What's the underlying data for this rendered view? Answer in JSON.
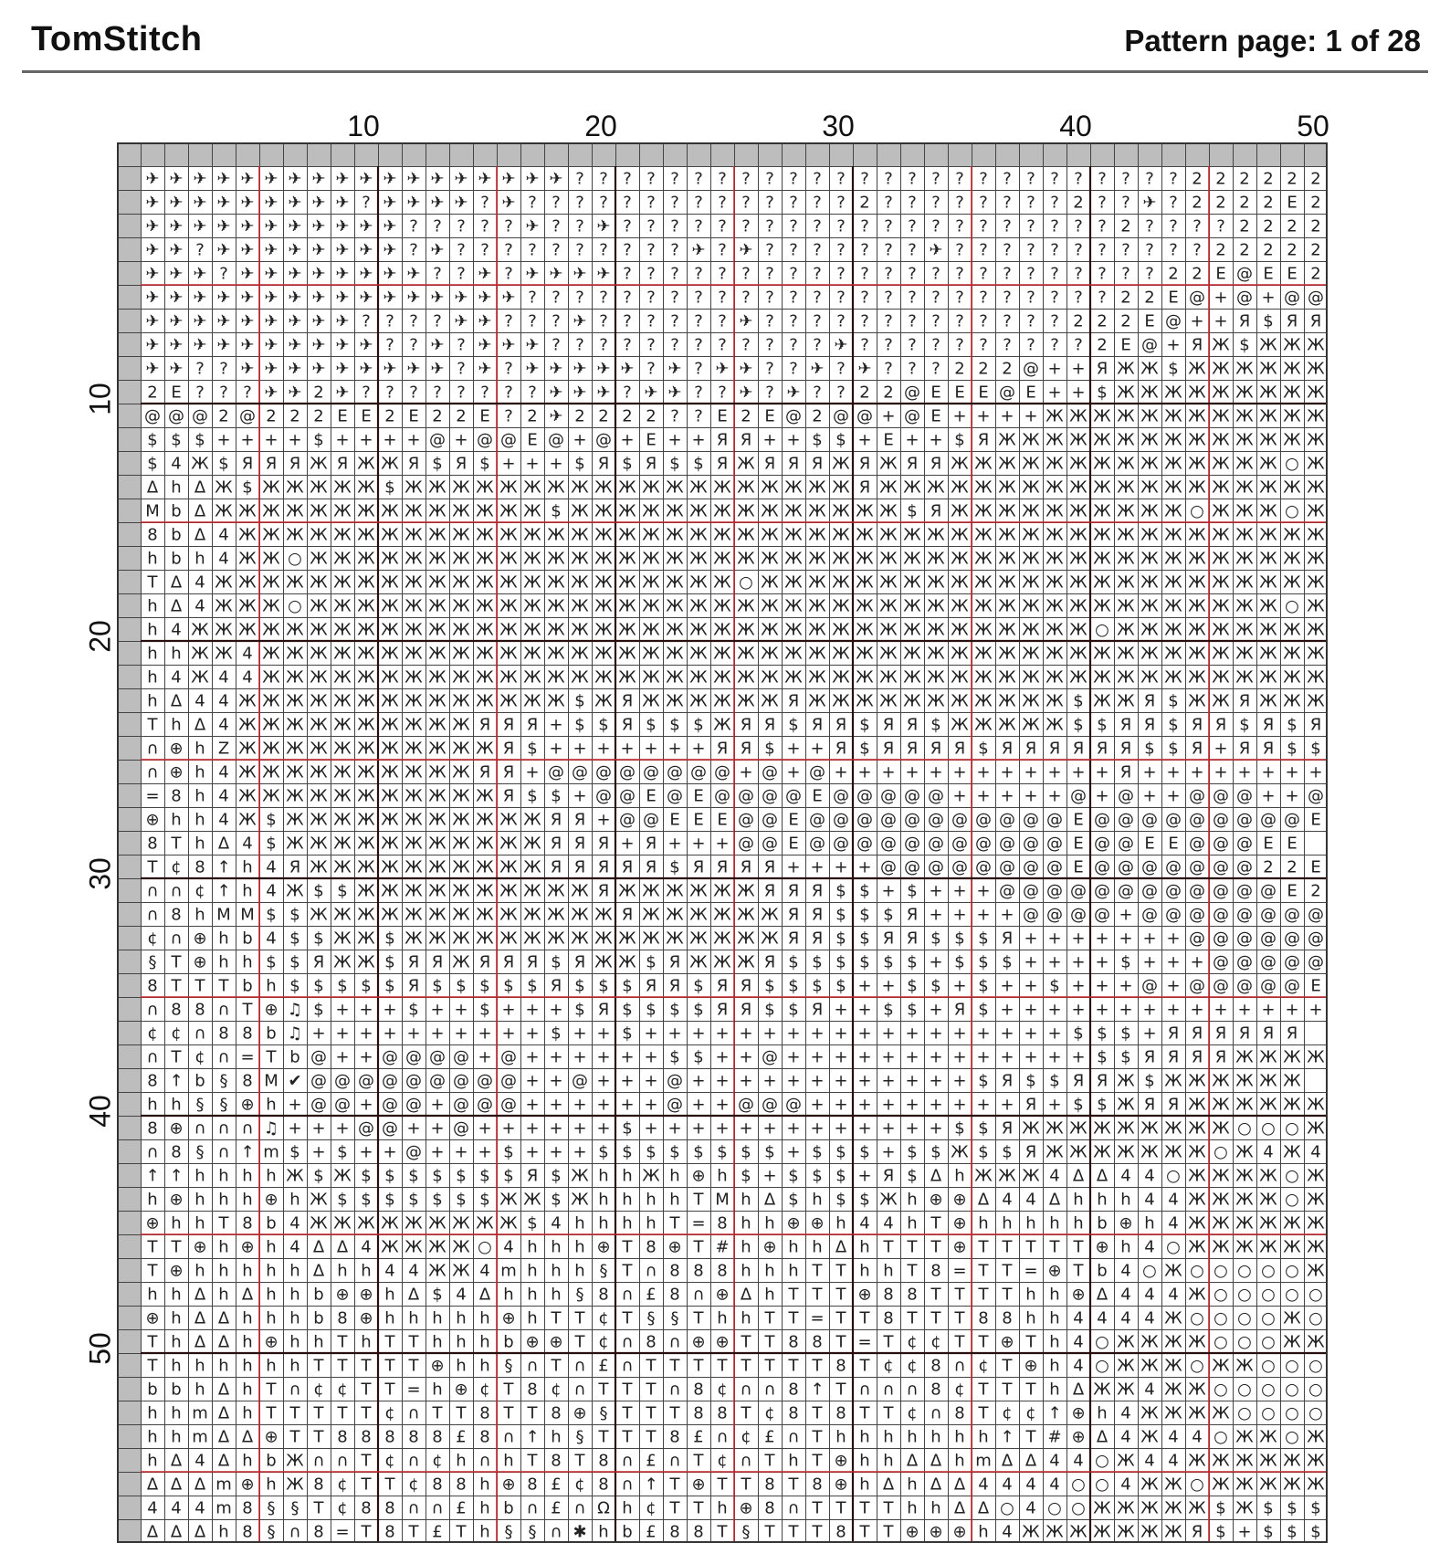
{
  "header": {
    "brand": "TomStitch",
    "page_label": "Pattern page: 1 of 28"
  },
  "axes": {
    "column_numbers": [
      "10",
      "20",
      "30",
      "40",
      "50"
    ],
    "row_numbers": [
      "10",
      "20",
      "30",
      "40",
      "50"
    ]
  },
  "grid": {
    "columns": 50,
    "rows": 58,
    "grid_line_color": "#444444",
    "major_line_color": "#2a0f0f",
    "minor_line_color": "#c1272d",
    "margin_color": "#bdbdbd"
  },
  "pattern_rows": [
    "✈✈✈✈✈✈✈✈✈✈✈✈✈✈✈✈✈✈??????????????????????????2222222222EE",
    "✈✈✈✈✈✈✈✈✈?✈✈✈✈?✈??????????????2????????2??✈?2222E22E22",
    "✈✈✈✈✈✈✈✈✈✈✈?????✈??✈?????????????????????2????2222EE222E",
    "✈✈?✈✈✈✈✈✈✈✈?✈??????????✈?✈???????✈???????????2222222EEE22",
    "✈✈✈?✈✈✈✈✈✈✈✈??✈?✈✈✈✈???????????????????????22E@EE2EEEE2E",
    "✈✈✈✈✈✈✈✈✈✈✈✈✈✈✈✈?????????????????????????22E@+@+@@@@E@E",
    "✈✈✈✈✈✈✈✈✈????✈✈???✈??????✈?????????????222E@++Я$ЯЯ$$++",
    "✈✈✈✈✈✈✈✈✈✈??✈?✈✈✈????????????✈??????????2E@+ЯЖ$ЖЖЖЖЖЖЖЖ",
    "✈✈??✈✈✈✈✈✈✈✈✈?✈?✈✈✈✈✈?✈?✈✈??✈?✈???222@++ЯЖЖ$ЖЖЖЖЖЖЖЖ",
    "2E???✈✈2✈????????✈✈✈?✈✈??✈?✈??22@EEE@E++$ЖЖЖЖЖЖЖЖЖЖ$$",
    "@@@2@222EE2E22E?2✈2222??E2E@2@@+@E++++ЖЖЖЖЖЖЖЖЖЖЖЖ$$",
    "$$$++++$++++@+@@E@+@+E++ЯЯ++$$+E++$ЯЖЖЖЖЖЖЖЖЖЖЖЖЖЖ$$",
    "$4Ж$ЯЯЯЖЯЖЖЯ$Я$+++$Я$Я$$ЯЖЯЯЯЖЯЖЯЯЖЖЖЖЖЖЖЖЖЖЖЖЖЖ○ЖЖ",
    "ΔhΔЖ$ЖЖЖЖЖ$ЖЖЖЖЖЖЖЖЖЖЖЖЖЖЖЖЖЖЖЯЖЖЖЖЖЖЖЖЖЖЖЖЖЖЖЖЖЖЖ",
    "MbΔЖЖЖЖЖЖЖЖЖЖЖЖЖЖ$ЖЖЖЖЖЖЖЖЖЖЖЖЖЖ$ЯЖЖЖЖЖЖЖЖЖЖ○ЖЖЖ○ЖЖ○Ж",
    "8bΔ4ЖЖЖЖЖЖЖЖЖЖЖЖЖЖЖЖЖЖЖЖЖЖЖЖЖЖЖЖЖЖЖЖЖЖЖЖЖЖЖЖЖЖЖЖЖЖЖЖ",
    "hbh4ЖЖ○ЖЖЖЖЖЖЖЖЖЖЖЖЖЖЖЖЖЖЖЖЖЖЖЖЖЖЖЖЖЖЖЖЖЖЖЖЖЖЖЖЖЖЖЖ",
    "TΔ4ЖЖЖЖЖЖЖЖЖЖЖЖЖЖЖЖЖЖЖЖЖЖ○ЖЖЖЖЖЖЖЖЖЖЖЖЖЖЖЖЖЖЖЖЖЖЖЖЖ",
    "hΔ4ЖЖЖ○ЖЖЖЖЖЖЖЖЖЖЖЖЖЖЖЖЖЖЖЖЖЖЖЖЖЖЖЖЖЖЖЖЖЖЖЖЖЖЖЖЖ○ЖЖ",
    "h4ЖЖЖЖЖЖЖЖЖЖЖЖЖЖЖЖЖЖЖЖЖЖЖЖЖЖЖЖЖЖЖЖЖЖЖЖЖЖ○ЖЖЖЖЖЖЖЖЖЖ",
    "hhЖЖ4ЖЖЖЖЖЖЖЖЖЖЖЖЖЖЖЖЖЖЖЖЖЖЖЖЖЖЖЖЖЖЖЖЖЖЖЖЖЖЖЖЖЖЖЖЖЖ",
    "h4Ж44ЖЖЖЖЖЖЖЖЖЖЖЖЖЖЖЖЖЖЖЖЖЖЖЖЖЖЖЖЖЖЖЖЖЖЖЖЖЖЖЖЖЖЖЖЖЖ",
    "hΔ44ЖЖЖЖЖЖЖЖЖЖЖЖЖЖ$ЖЯЖЖЖЖЖЖЯЖЖЖЖЖЖЖЖЖЖЖ$ЖЖЯ$ЖЖЯЖЖЖЖ",
    "ThΔ4ЖЖЖЖЖЖЖЖЖЖЯЯЯ+$$Я$$$ЖЯЯ$ЯЯ$ЯЯ$ЖЖЖЖЖ$$ЯЯ$ЯЯ$Я$ЯЯ",
    "∩⊕hZЖЖЖЖЖЖЖЖЖЖЖЯ$+++++++ЯЯ$++Я$ЯЯЯЯ$ЯЯЯЯЯЯ$$Я+ЯЯ$$+$",
    "∩⊕h4ЖЖЖЖЖЖЖЖЖЖЯЯ+@@@@@@@@+@+@++++++++++++Я++++++++",
    "=8h4ЖЖЖЖЖЖЖЖЖЖЖЯ$$+@@E@E@@@@E@@@@@+++++@+@++@@@++@",
    "⊕hh4Ж$ЖЖЖЖЖЖЖЖЖЖЖЯЯ+@@EEE@@E@@@@@@@@@@@E@@@@@@@@@E",
    "8ThΔ4$ЖЖЖЖЖЖЖЖЖЖЖЯЯЯ+Я+++@@E@@@@@@@@@@@E@@EE@@@EE",
    "T¢8↑h4ЯЖЖЖЖЖЖЖЖЖЖЯЯЯЯЯ$ЯЯЯЯ++++@@@@@@@@E@@@@@@@22E2",
    "∩∩¢↑h4Ж$$ЖЖЖЖЖЖЖЖЖЖЯЖЖЖЖЖЖЯЯЯ$$+$+++@@@@@@@@@@@@E2E2",
    "∩8hMM$$ЖЖЖЖЖЖЖЖЖЖЖЖЖЯЖЖЖЖЖЖЯЯ$$$Я++++@@@@+@@@@@@@@EE",
    "¢∩⊕hb4$$ЖЖ$ЖЖЖЖЖЖЖЖЖЖЖЖЖЖЖЖЯЯ$$ЯЯ$$$Я+++++++@@@@@@@E@",
    "§T⊕hh$$ЯЖЖ$ЯЯЖЯЯЯ$ЯЖЖ$ЯЖЖЖЯ$$$$$$+$$$++++$+++@@@@@E@",
    "8TTTbh$$$$$Я$$$$$Я$$$ЯЯ$ЯЯ$$$$++$$+$++$+++@+@@@@@E",
    "∩88∩T⊕♫$+++$++$+++$Я$$$$ЯЯ$$Я++$$+Я$++++++++++++++Я",
    "¢¢∩88b♫++++++++++$++$++++++++++++++++++$$$+ЯЯЯЯЯЯ",
    "∩T¢∩=Tb@++@@@@+@++++++$$++@+++++++++++++$$ЯЯЯЯЖЖЖЖ",
    "8↑b§8M✔@@@@@@@@@++@+++@++++++++++++$Я$$ЯЯЖ$ЖЖЖЖЖЖ",
    "hh§§⊕h+@@+@@+@@@++++++@++@@@+++++++++Я+$$ЖЯЯЖЖЖЖЖЖЖЖЖ",
    "8⊕∩∩∩♫+++@@++@++++++$+++++++++++++$$ЯЖЖЖЖЖЖЖЖЖ○○○ЖЖ",
    "∩8§∩↑m$+$++@+++$+++$$$$$$$$+$$$+$$Ж$$ЯЖЖЖЖЖЖЖ○Ж4Ж44ЖЖЖ",
    "↑↑hhhhЖ$Ж$$$$$$$Я$ЖhhЖh⊕h$+$$$+Я$ΔhЖЖЖ4ΔΔ44○ЖЖЖЖ○ЖЖ",
    "h⊕hhh⊕hЖ$$$$$$$ЖЖ$ЖhhhhTMhΔ$h$$Жh⊕⊕Δ44Δhhh44ЖЖЖЖ○ЖЖ",
    "⊕hhT8b4ЖЖЖЖЖЖЖЖЖ$4hhhhT=8hh⊕⊕h44hT⊕hhhhhb⊕h4ЖЖЖЖЖЖЖ○",
    "TT⊕h⊕h4ΔΔ4ЖЖЖЖ○4hhh⊕T8⊕T#h⊕hhΔhTTT⊕TTTTT⊕h4○ЖЖЖЖЖЖЖЖ",
    "T⊕hhhhhΔhh44ЖЖ4mhhh§T∩888hhhTThhT8=TT=⊕Tb4○Ж○○○○○ЖЖ",
    "hhΔhΔhhb⊕⊕hΔ$4Δhhh§8∩£8∩⊕ΔhTTT⊕88TTTThh⊕Δ444Ж○○○○○Ж",
    "⊕hΔΔhhhb8⊕hhhhh⊕hTT¢T§§ThhTT=TT8TTT88hh4444Ж○○○○Ж○",
    "ThΔΔh⊕hhThTThhhb⊕⊕T¢∩8∩⊕⊕TT88T=T¢¢TT⊕Th4○ЖЖЖЖ○○○ЖЖ",
    "ThhhhhhTTTTT⊕hh§∩T∩£∩TTTTTTTT8T¢¢8∩¢T⊕h4○ЖЖЖ○ЖЖ○○○○",
    "bbhΔhT∩¢¢TT=h⊕¢T8¢∩TTT∩8¢∩∩8↑T∩∩∩8¢TTThΔЖЖ4ЖЖ○○○○○",
    "hhmΔhTTTTT¢∩TT8TT8⊕§TTT88T¢8T8TT¢∩8T¢¢↑⊕h4ЖЖЖЖ○○○○○",
    "hhmΔΔ⊕TT88888£8∩↑h§TTT8£∩¢£∩Thhhhhhh↑T#⊕Δ4Ж44○ЖЖ○Ж○",
    "hΔ4ΔhbЖ∩∩T¢∩¢h∩hT8T8∩£∩T¢∩ThT⊕hhΔΔhmΔΔ44○Ж44ЖЖЖЖЖЖЖ",
    "ΔΔΔm⊕hЖ8¢TT¢88h⊕8£¢8∩↑T⊕TT8T8⊕hΔhΔΔ4444○○4ЖЖ○ЖЖЖЖЖ",
    "444m8§§T¢88∩∩£hb∩£∩Ωh¢TTh⊕8∩TTTThhΔΔ○4○○ЖЖЖЖЖ$Ж$$$",
    "ΔΔΔh8§∩8=T8T£Th§§∩✱hb£88T§TTT8TT⊕⊕⊕h4ЖЖЖЖЖЖЖЯ$+$$$+"
  ]
}
